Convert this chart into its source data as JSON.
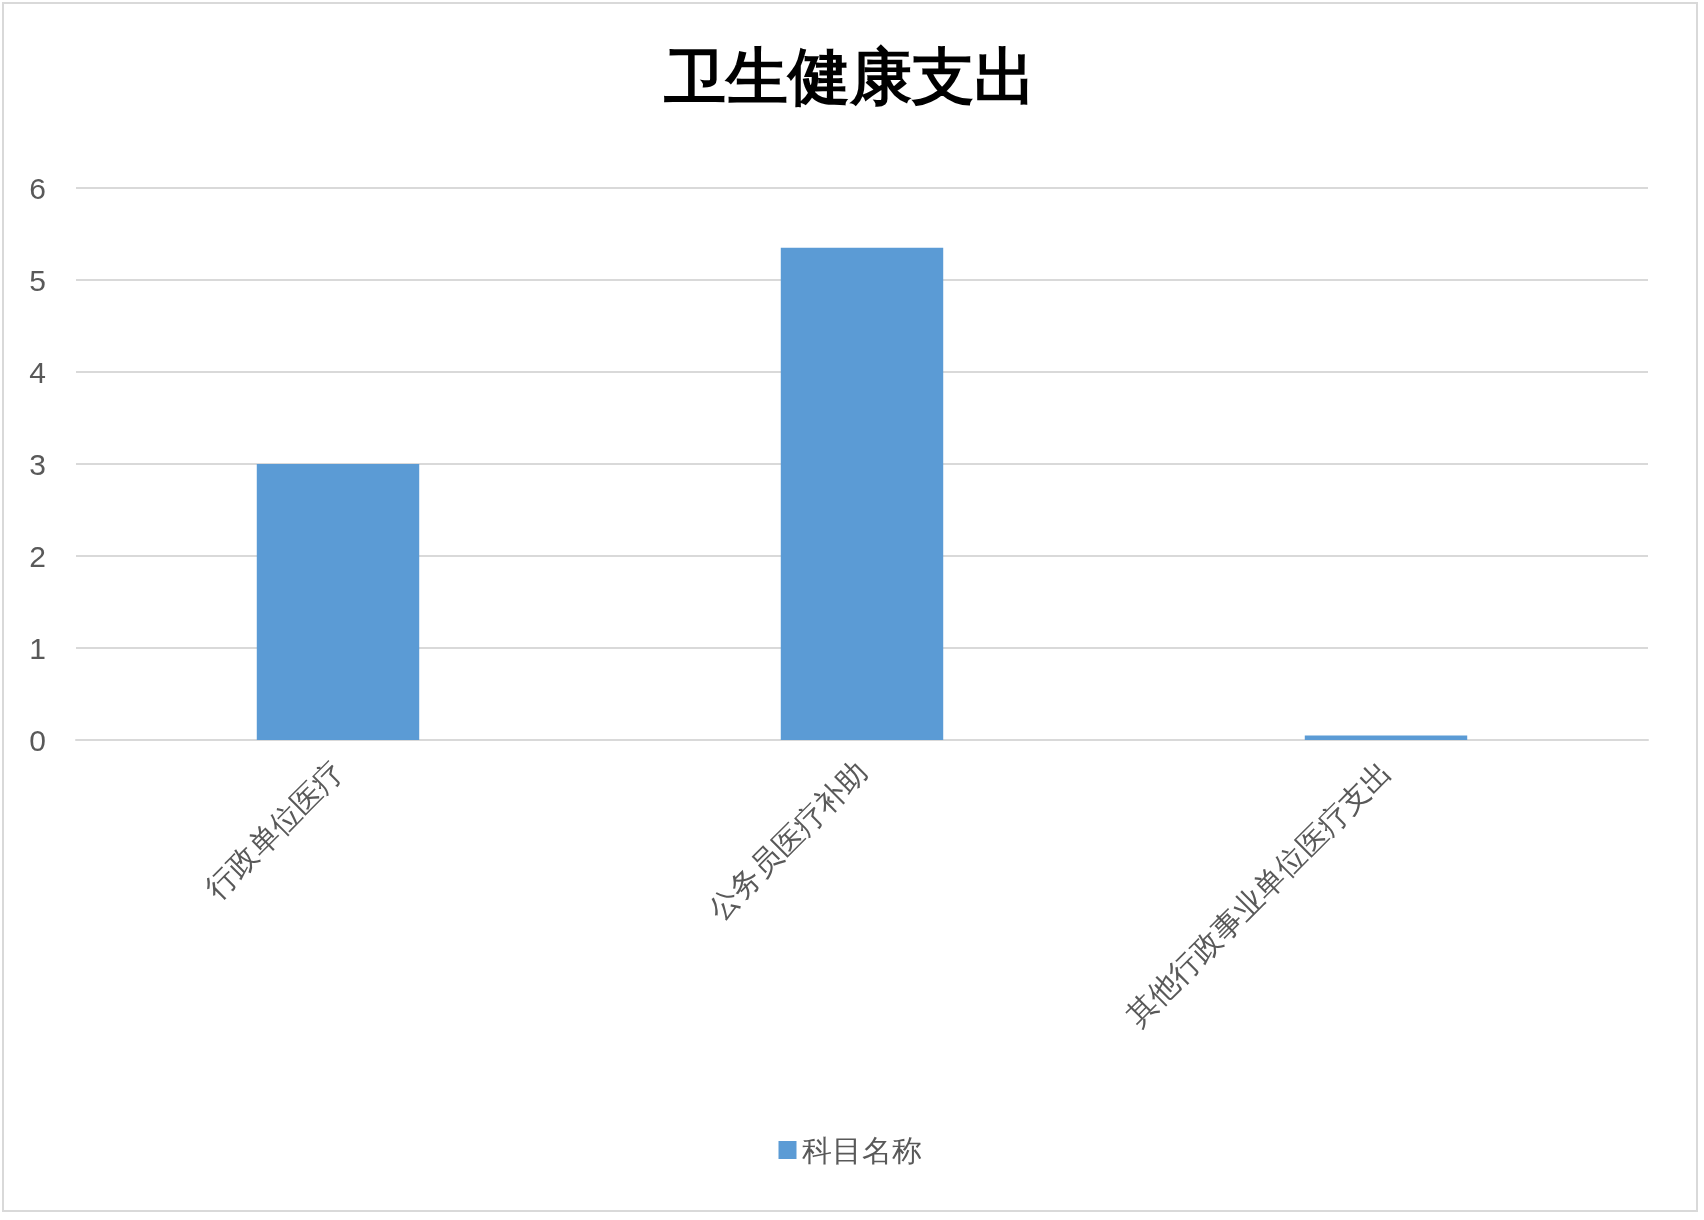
{
  "chart_data": {
    "type": "bar",
    "title": "卫生健康支出",
    "categories": [
      "行政单位医疗",
      "公务员医疗补助",
      "其他行政事业单位医疗支出"
    ],
    "series": [
      {
        "name": "科目名称",
        "color": "#5b9bd5",
        "values": [
          3.0,
          5.35,
          0.05
        ]
      }
    ],
    "ylim": [
      0,
      6
    ],
    "yticks": [
      0,
      1,
      2,
      3,
      4,
      5,
      6
    ],
    "grid": "y",
    "legend": "bottom"
  }
}
